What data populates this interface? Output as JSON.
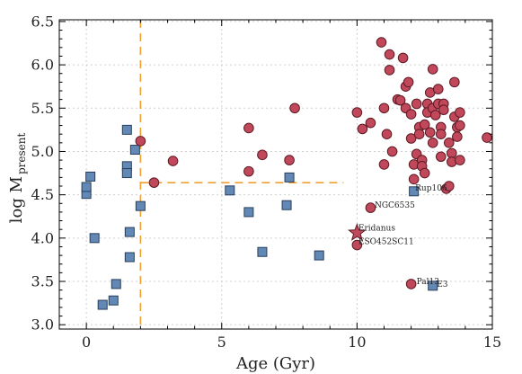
{
  "chart_data": {
    "type": "scatter",
    "xlabel": "Age (Gyr)",
    "ylabel_main": "log M",
    "ylabel_sub": "present",
    "xlim": [
      -1,
      15
    ],
    "ylim": [
      2.95,
      6.52
    ],
    "xticks": [
      {
        "value": 0,
        "label": "0"
      },
      {
        "value": 5,
        "label": "5"
      },
      {
        "value": 10,
        "label": "10"
      },
      {
        "value": 15,
        "label": "15"
      }
    ],
    "yticks": [
      {
        "value": 3.0,
        "label": "3.0"
      },
      {
        "value": 3.5,
        "label": "3.5"
      },
      {
        "value": 4.0,
        "label": "4.0"
      },
      {
        "value": 4.5,
        "label": "4.5"
      },
      {
        "value": 5.0,
        "label": "5.0"
      },
      {
        "value": 5.5,
        "label": "5.5"
      },
      {
        "value": 6.0,
        "label": "6.0"
      },
      {
        "value": 6.5,
        "label": "6.5"
      }
    ],
    "grid": true,
    "colors": {
      "circle_fill": "#c0485a",
      "circle_stroke": "#5e1a24",
      "square_fill": "#6289b6",
      "square_stroke": "#283e5a",
      "dashed_line": "#f0a030",
      "grid": "#d0d0d0"
    },
    "reference_lines": [
      {
        "orientation": "vertical",
        "x": 2.0
      },
      {
        "orientation": "horizontal",
        "y": 4.64,
        "x_from": 2.0,
        "x_to": 9.5
      }
    ],
    "series": [
      {
        "marker": "square",
        "points": [
          [
            0.0,
            4.51
          ],
          [
            0.0,
            4.59
          ],
          [
            0.15,
            4.71
          ],
          [
            0.3,
            4.0
          ],
          [
            0.6,
            3.23
          ],
          [
            1.0,
            3.28
          ],
          [
            1.1,
            3.47
          ],
          [
            1.5,
            5.25
          ],
          [
            1.5,
            4.83
          ],
          [
            1.5,
            4.75
          ],
          [
            1.6,
            4.07
          ],
          [
            1.6,
            3.78
          ],
          [
            1.8,
            5.02
          ],
          [
            2.0,
            4.37
          ],
          [
            5.3,
            4.55
          ],
          [
            6.0,
            4.3
          ],
          [
            6.5,
            3.84
          ],
          [
            7.4,
            4.38
          ],
          [
            7.5,
            4.7
          ],
          [
            8.6,
            3.8
          ],
          [
            12.1,
            4.54
          ],
          [
            12.8,
            3.45
          ]
        ]
      },
      {
        "marker": "circle",
        "points": [
          [
            2.0,
            5.12
          ],
          [
            2.5,
            4.64
          ],
          [
            3.2,
            4.89
          ],
          [
            6.0,
            5.27
          ],
          [
            6.0,
            4.77
          ],
          [
            6.5,
            4.96
          ],
          [
            7.5,
            4.9
          ],
          [
            7.7,
            5.5
          ],
          [
            10.0,
            5.45
          ],
          [
            10.2,
            5.26
          ],
          [
            10.5,
            5.33
          ],
          [
            10.5,
            4.35
          ],
          [
            10.0,
            3.92
          ],
          [
            12.0,
            3.47
          ],
          [
            10.9,
            6.26
          ],
          [
            11.2,
            6.12
          ],
          [
            11.2,
            5.94
          ],
          [
            11.0,
            5.5
          ],
          [
            11.1,
            5.2
          ],
          [
            11.3,
            5.0
          ],
          [
            11.0,
            4.85
          ],
          [
            11.5,
            5.6
          ],
          [
            11.6,
            5.59
          ],
          [
            11.8,
            5.5
          ],
          [
            11.7,
            6.08
          ],
          [
            11.8,
            5.75
          ],
          [
            11.9,
            5.8
          ],
          [
            12.0,
            5.43
          ],
          [
            12.0,
            5.15
          ],
          [
            12.1,
            4.85
          ],
          [
            12.1,
            4.68
          ],
          [
            12.2,
            5.55
          ],
          [
            12.2,
            4.97
          ],
          [
            12.3,
            5.28
          ],
          [
            12.3,
            5.2
          ],
          [
            12.4,
            4.9
          ],
          [
            12.4,
            4.83
          ],
          [
            12.5,
            5.31
          ],
          [
            12.5,
            4.75
          ],
          [
            12.6,
            5.55
          ],
          [
            12.6,
            5.45
          ],
          [
            12.7,
            5.68
          ],
          [
            12.7,
            5.22
          ],
          [
            12.8,
            5.95
          ],
          [
            12.8,
            5.1
          ],
          [
            12.8,
            5.5
          ],
          [
            12.9,
            5.42
          ],
          [
            13.0,
            5.72
          ],
          [
            13.0,
            5.55
          ],
          [
            13.1,
            5.28
          ],
          [
            13.1,
            5.2
          ],
          [
            13.1,
            4.94
          ],
          [
            13.2,
            5.55
          ],
          [
            13.2,
            5.48
          ],
          [
            13.3,
            4.57
          ],
          [
            13.4,
            4.6
          ],
          [
            13.4,
            5.1
          ],
          [
            13.5,
            4.98
          ],
          [
            13.5,
            4.88
          ],
          [
            13.6,
            5.8
          ],
          [
            13.6,
            5.4
          ],
          [
            13.7,
            5.28
          ],
          [
            13.7,
            5.17
          ],
          [
            13.8,
            5.45
          ],
          [
            13.8,
            5.3
          ],
          [
            13.8,
            4.9
          ],
          [
            14.8,
            5.16
          ]
        ]
      },
      {
        "marker": "star",
        "points": [
          [
            10.0,
            4.06
          ]
        ]
      }
    ],
    "annotations": [
      {
        "text": "NGC6535",
        "x": 10.65,
        "y": 4.38
      },
      {
        "text": "Rup106",
        "x": 12.15,
        "y": 4.58
      },
      {
        "text": "Eridanus",
        "x": 10.05,
        "y": 4.12
      },
      {
        "text": "ESO452SC11",
        "x": 10.05,
        "y": 3.96
      },
      {
        "text": "Pal13",
        "x": 12.2,
        "y": 3.5
      },
      {
        "text": "E3",
        "x": 12.95,
        "y": 3.47
      }
    ]
  }
}
